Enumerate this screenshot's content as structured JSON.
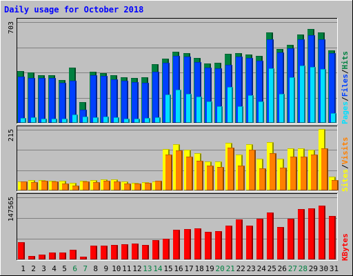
{
  "chart_data": {
    "type": "bar",
    "title": "Daily usage for October 2018",
    "days": [
      "1",
      "2",
      "3",
      "4",
      "5",
      "6",
      "7",
      "8",
      "9",
      "10",
      "11",
      "12",
      "13",
      "14",
      "15",
      "16",
      "17",
      "18",
      "19",
      "20",
      "21",
      "22",
      "23",
      "24",
      "25",
      "26",
      "27",
      "28",
      "29",
      "30",
      "31"
    ],
    "weekend_days": [
      "6",
      "7",
      "13",
      "14",
      "20",
      "21",
      "27",
      "28"
    ],
    "panels": [
      {
        "id": "hits",
        "max_label": "703",
        "ymax": 703,
        "series": [
          {
            "name": "Hits",
            "color": "#008040",
            "values": [
              361,
              351,
              331,
              331,
              299,
              383,
              145,
              358,
              346,
              331,
              317,
              313,
              317,
              410,
              448,
              495,
              488,
              451,
              412,
              417,
              481,
              486,
              477,
              469,
              633,
              515,
              543,
              614,
              656,
              630,
              507
            ]
          },
          {
            "name": "Files",
            "color": "#0040ff",
            "values": [
              322,
              312,
              315,
              311,
              277,
              296,
              93,
              332,
              329,
              303,
              296,
              283,
              280,
              354,
              417,
              465,
              460,
              423,
              384,
              380,
              403,
              461,
              452,
              435,
              584,
              489,
              518,
              582,
              613,
              584,
              485
            ]
          },
          {
            "name": "Pages",
            "color": "#00e0ff",
            "values": [
              34,
              39,
              31,
              31,
              31,
              56,
              42,
              39,
              44,
              40,
              31,
              31,
              32,
              40,
              197,
              231,
              203,
              185,
              148,
              117,
              250,
              117,
              193,
              148,
              382,
              201,
              319,
              402,
              390,
              375,
              67
            ]
          }
        ]
      },
      {
        "id": "sites",
        "max_label": "215",
        "ymax": 215,
        "series": [
          {
            "name": "Sites",
            "color": "#ffff00",
            "values": [
              32,
              37,
              36,
              35,
              33,
              28,
              34,
              36,
              39,
              38,
              31,
              28,
              30,
              32,
              146,
              163,
              145,
              133,
              103,
              103,
              168,
              126,
              164,
              113,
              172,
              112,
              149,
              148,
              145,
              218,
              48
            ]
          },
          {
            "name": "Visits",
            "color": "#ff8000",
            "values": [
              32,
              30,
              34,
              31,
              25,
              18,
              32,
              30,
              34,
              31,
              24,
              25,
              28,
              34,
              128,
              141,
              120,
              105,
              88,
              84,
              152,
              89,
              144,
              79,
              131,
              81,
              119,
              119,
              127,
              149,
              37
            ]
          }
        ]
      },
      {
        "id": "kbytes",
        "max_label": "147565",
        "ymax": 147565,
        "series": [
          {
            "name": "KBytes",
            "color": "#ff0000",
            "values": [
              41000,
              9000,
              12000,
              16000,
              16000,
              23000,
              7000,
              32000,
              33000,
              35000,
              36000,
              37000,
              35000,
              46000,
              50000,
              71000,
              72000,
              73000,
              65000,
              68000,
              81000,
              95000,
              81000,
              97000,
              111000,
              77000,
              97000,
              119000,
              122000,
              128000,
              104000
            ]
          }
        ]
      }
    ],
    "right_legend": [
      {
        "words": [
          [
            "Pages",
            "#00e0ff"
          ],
          [
            "/",
            "#000000"
          ],
          [
            "Files",
            "#0040ff"
          ],
          [
            "/",
            "#000000"
          ],
          [
            "Hits",
            "#008040"
          ]
        ]
      },
      {
        "words": [
          [
            "Sites",
            "#ffff00"
          ],
          [
            "/",
            "#000000"
          ],
          [
            "Visits",
            "#ff8000"
          ]
        ]
      },
      {
        "words": [
          [
            "KBytes",
            "#ff0000"
          ]
        ]
      }
    ],
    "colors": {
      "background": "#c0c0c0",
      "title": "#0000ff",
      "weekday_label": "#000000",
      "weekend_label": "#008040",
      "frame_light": "#ffffff",
      "frame_dark": "#000000"
    }
  }
}
